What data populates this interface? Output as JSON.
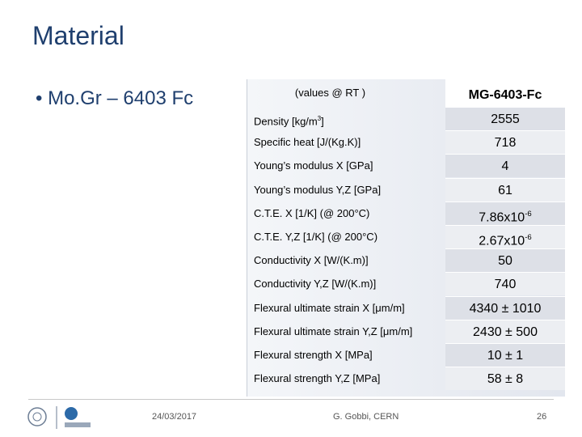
{
  "header": {
    "title": "Material"
  },
  "bullet": "Mo.Gr – 6403 Fc",
  "table": {
    "header": [
      "(values @ RT )",
      "MG-6403-Fc"
    ],
    "rows": [
      [
        {
          "text": "Density [kg/m",
          "sup": "3",
          "after": "]"
        },
        {
          "text": "2555"
        }
      ],
      [
        {
          "text": "Specific heat [J/(Kg.K)]"
        },
        {
          "text": "718"
        }
      ],
      [
        {
          "text": "Young’s modulus X [GPa]"
        },
        {
          "text": "4"
        }
      ],
      [
        {
          "text": "Young’s modulus Y,Z [GPa]"
        },
        {
          "text": "61"
        }
      ],
      [
        {
          "text": "C.T.E. X [1/K] (@ 200°C)"
        },
        {
          "text": "7.86x10",
          "sup": "-6"
        }
      ],
      [
        {
          "text": "C.T.E. Y,Z [1/K] (@ 200°C)"
        },
        {
          "text": "2.67x10",
          "sup": "-6"
        }
      ],
      [
        {
          "text": "Conductivity X [W/(K.m)]"
        },
        {
          "text": "50"
        }
      ],
      [
        {
          "text": "Conductivity Y,Z [W/(K.m)]"
        },
        {
          "text": "740"
        }
      ],
      [
        {
          "text": "Flexural ultimate strain X [μm/m]"
        },
        {
          "text": "4340 ± 1010"
        }
      ],
      [
        {
          "text": "Flexural ultimate strain Y,Z [μm/m]"
        },
        {
          "text": "2430 ± 500"
        }
      ],
      [
        {
          "text": "Flexural strength X [MPa]"
        },
        {
          "text": "10 ± 1"
        }
      ],
      [
        {
          "text": "Flexural strength Y,Z [MPa]"
        },
        {
          "text": "58 ± 8"
        }
      ]
    ]
  },
  "footer": {
    "date": "24/03/2017",
    "author": "G. Gobbi, CERN",
    "page": "26"
  }
}
